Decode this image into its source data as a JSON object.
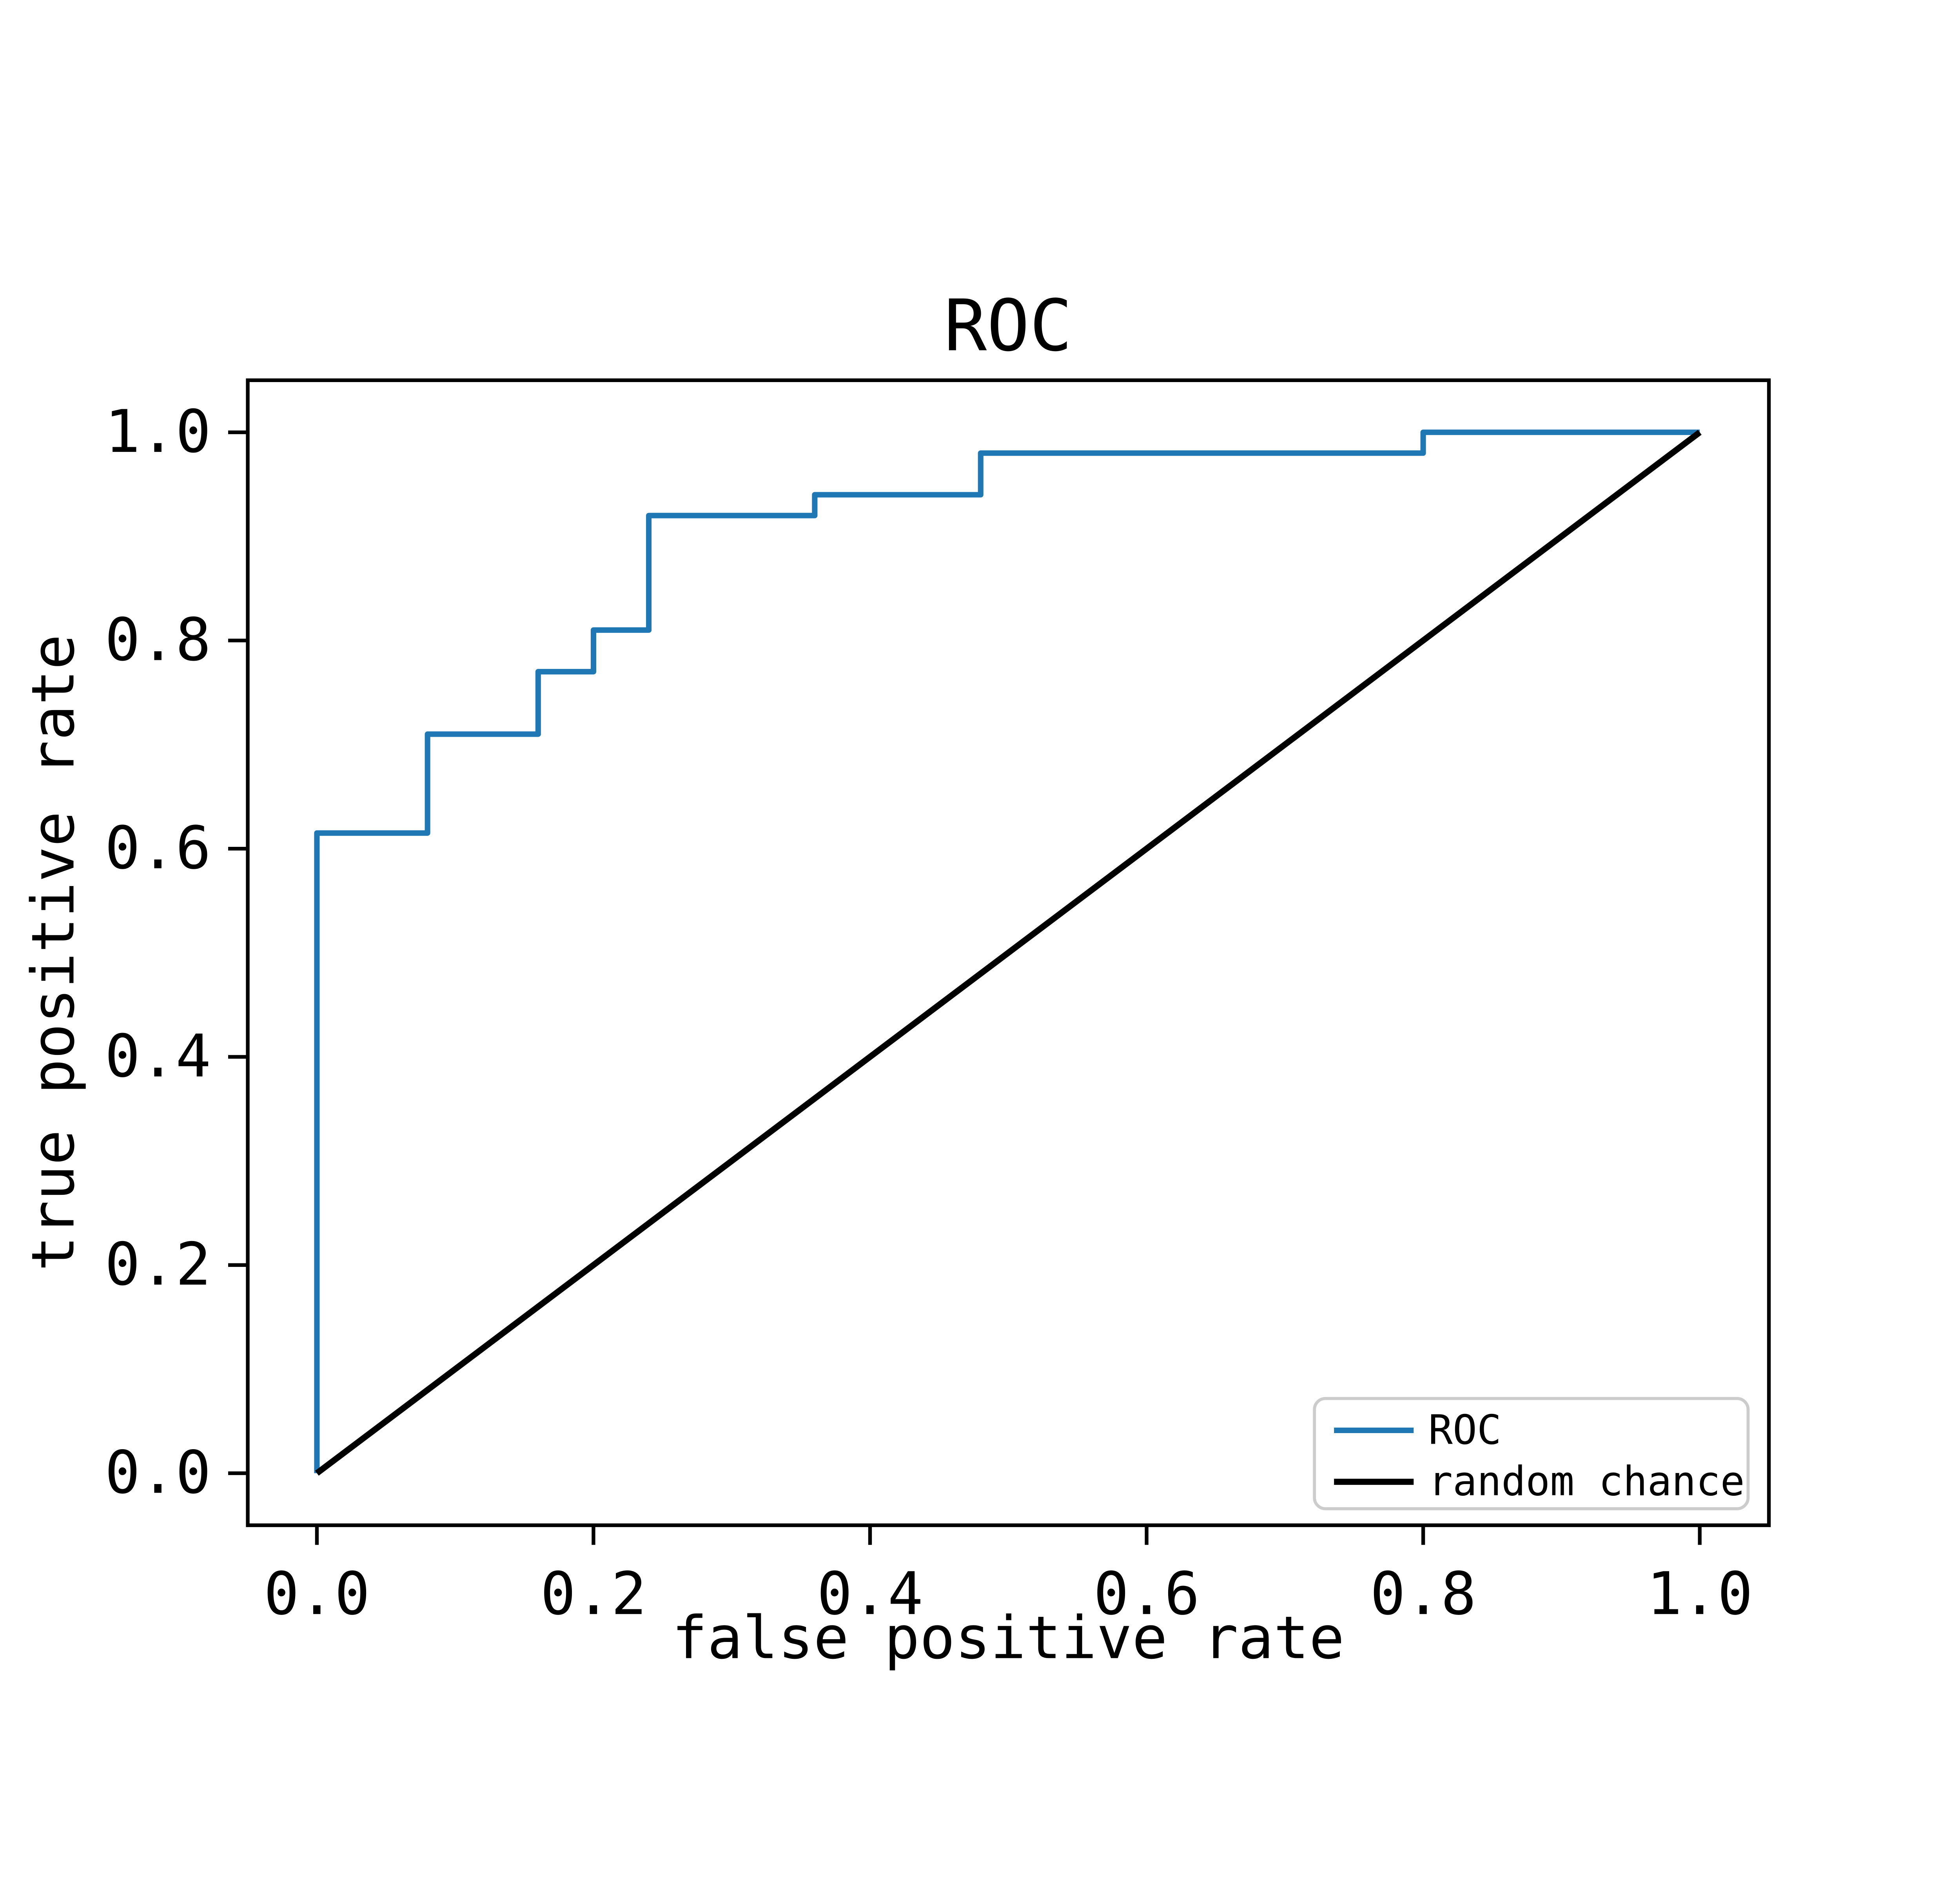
{
  "figure": {
    "background": "#ffffff"
  },
  "chart_data": {
    "type": "line",
    "subtype": "roc_step_curve",
    "title": "ROC",
    "xlabel": "false positive rate",
    "ylabel": "true positive rate",
    "xlim": [
      -0.05,
      1.05
    ],
    "ylim": [
      -0.05,
      1.05
    ],
    "x_tick_labels": [
      "0.0",
      "0.2",
      "0.4",
      "0.6",
      "0.8",
      "1.0"
    ],
    "x_tick_values": [
      0,
      0.2,
      0.4,
      0.6,
      0.8,
      1.0
    ],
    "y_tick_labels": [
      "0.0",
      "0.2",
      "0.4",
      "0.6",
      "0.8",
      "1.0"
    ],
    "y_tick_values": [
      0,
      0.2,
      0.4,
      0.6,
      0.8,
      1.0
    ],
    "grid": false,
    "frame_color": "#000000",
    "legend_position": "lower right",
    "legend_edge_color": "#cccccc",
    "series": [
      {
        "name": "ROC",
        "color": "#1f77b4",
        "line_width": 4.5,
        "drawstyle": "steps",
        "points": [
          [
            0.0,
            0.0
          ],
          [
            0.0,
            0.615
          ],
          [
            0.08,
            0.615
          ],
          [
            0.08,
            0.71
          ],
          [
            0.16,
            0.71
          ],
          [
            0.16,
            0.77
          ],
          [
            0.2,
            0.77
          ],
          [
            0.2,
            0.81
          ],
          [
            0.24,
            0.81
          ],
          [
            0.24,
            0.92
          ],
          [
            0.36,
            0.92
          ],
          [
            0.36,
            0.94
          ],
          [
            0.48,
            0.94
          ],
          [
            0.48,
            0.98
          ],
          [
            0.8,
            0.98
          ],
          [
            0.8,
            1.0
          ],
          [
            1.0,
            1.0
          ]
        ]
      },
      {
        "name": "random chance",
        "color": "#000000",
        "line_width": 5,
        "drawstyle": "line",
        "points": [
          [
            0.0,
            0.0
          ],
          [
            1.0,
            1.0
          ]
        ]
      }
    ],
    "legend": [
      {
        "label": "ROC",
        "color": "#1f77b4"
      },
      {
        "label": "random chance",
        "color": "#000000"
      }
    ]
  }
}
